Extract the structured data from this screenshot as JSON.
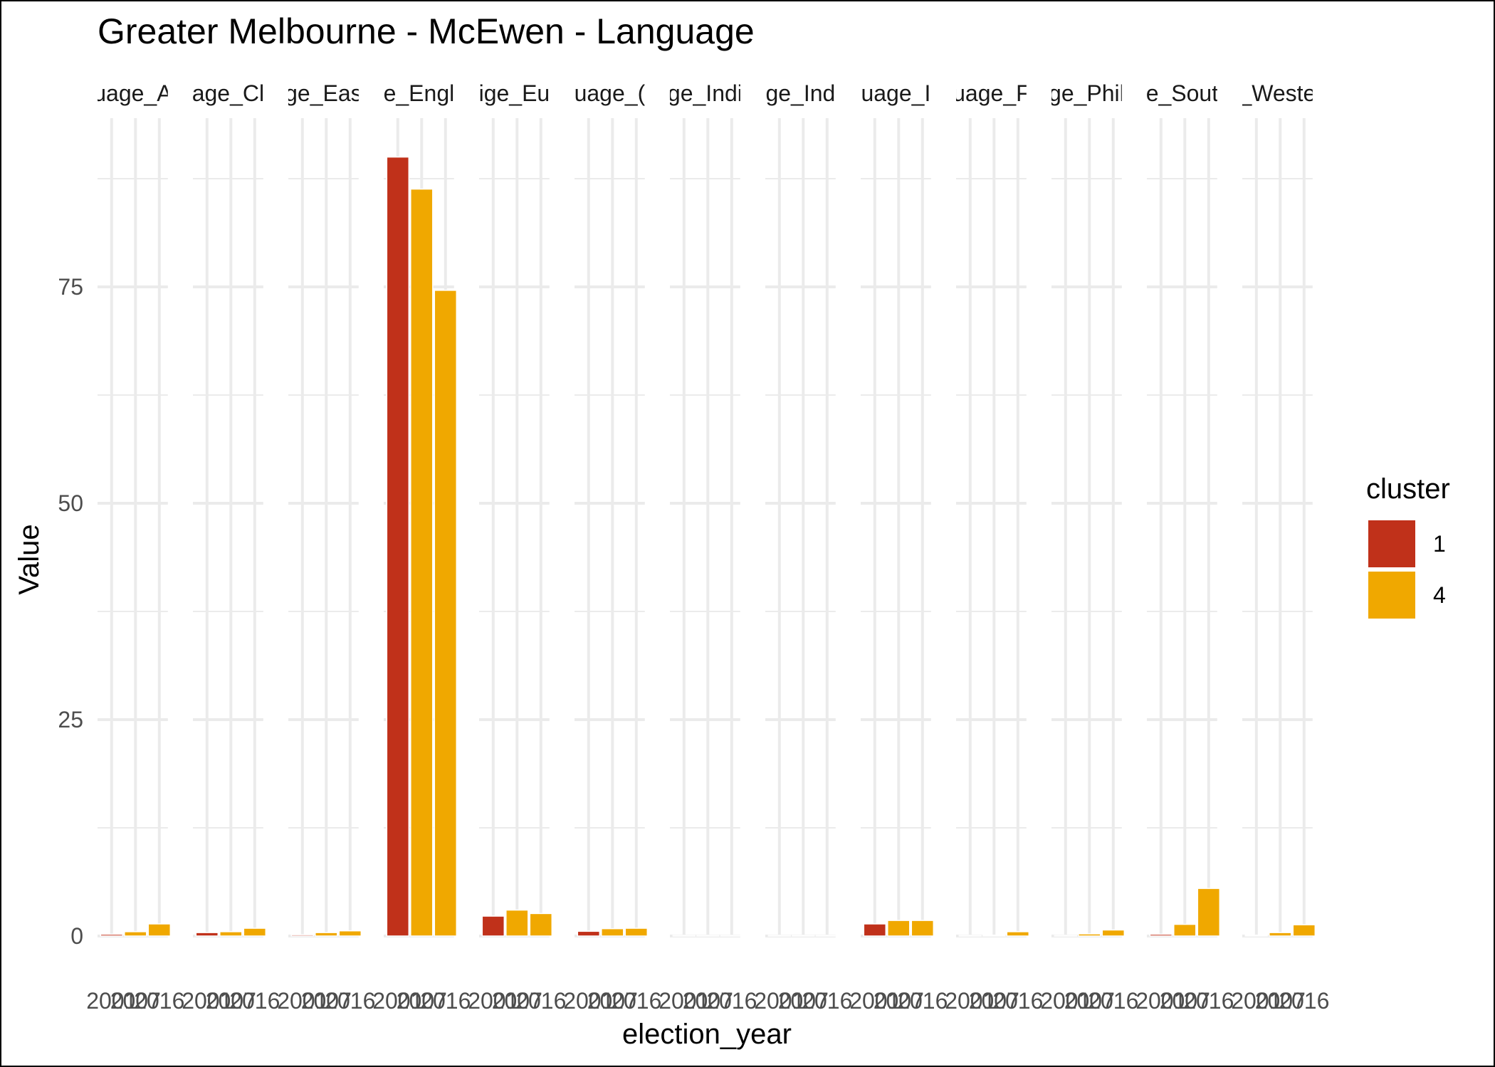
{
  "chart_data": {
    "type": "bar",
    "title": "Greater Melbourne - McEwen - Language",
    "xlabel": "election_year",
    "ylabel": "Value",
    "ylim": [
      0,
      95
    ],
    "yticks": [
      0,
      25,
      50,
      75
    ],
    "legend": {
      "title": "cluster",
      "position": "right",
      "entries": [
        {
          "label": "1",
          "color": "#C0311A"
        },
        {
          "label": "4",
          "color": "#F0A800"
        }
      ]
    },
    "facet_tick_labels": [
      "2001",
      "2007",
      "2016"
    ],
    "panels": [
      {
        "label": "Language_Arabic",
        "strip_text": "uage_A",
        "bars": [
          {
            "year": "2001",
            "cluster": "1",
            "value": 0.2
          },
          {
            "year": "2007",
            "cluster": "4",
            "value": 0.5
          },
          {
            "year": "2016",
            "cluster": "4",
            "value": 1.4
          }
        ]
      },
      {
        "label": "Language_Chinese",
        "strip_text": "age_Cl",
        "bars": [
          {
            "year": "2001",
            "cluster": "1",
            "value": 0.4
          },
          {
            "year": "2007",
            "cluster": "4",
            "value": 0.5
          },
          {
            "year": "2016",
            "cluster": "4",
            "value": 0.9
          }
        ]
      },
      {
        "label": "Language_Eastern",
        "strip_text": "ge_Eas",
        "bars": [
          {
            "year": "2001",
            "cluster": "1",
            "value": 0.15
          },
          {
            "year": "2007",
            "cluster": "4",
            "value": 0.4
          },
          {
            "year": "2016",
            "cluster": "4",
            "value": 0.6
          }
        ]
      },
      {
        "label": "Language_English",
        "strip_text": "e_Engl",
        "bars": [
          {
            "year": "2001",
            "cluster": "1",
            "value": 90.0
          },
          {
            "year": "2007",
            "cluster": "4",
            "value": 86.3
          },
          {
            "year": "2016",
            "cluster": "4",
            "value": 74.6
          }
        ]
      },
      {
        "label": "Language_European",
        "strip_text": "ige_Eu",
        "bars": [
          {
            "year": "2001",
            "cluster": "1",
            "value": 2.3
          },
          {
            "year": "2007",
            "cluster": "4",
            "value": 3.0
          },
          {
            "year": "2016",
            "cluster": "4",
            "value": 2.6
          }
        ]
      },
      {
        "label": "Language_Greek",
        "strip_text": "uage_(",
        "bars": [
          {
            "year": "2001",
            "cluster": "1",
            "value": 0.55
          },
          {
            "year": "2007",
            "cluster": "4",
            "value": 0.85
          },
          {
            "year": "2016",
            "cluster": "4",
            "value": 0.9
          }
        ]
      },
      {
        "label": "Language_Indian",
        "strip_text": "ge_Indi",
        "bars": [
          {
            "year": "2001",
            "cluster": "1",
            "value": 0.05
          },
          {
            "year": "2007",
            "cluster": "4",
            "value": 0.0
          },
          {
            "year": "2016",
            "cluster": "4",
            "value": 0.0
          }
        ]
      },
      {
        "label": "Language_Indigenous",
        "strip_text": "ge_Ind",
        "bars": [
          {
            "year": "2001",
            "cluster": "1",
            "value": 0.05
          },
          {
            "year": "2007",
            "cluster": "4",
            "value": 0.07
          },
          {
            "year": "2016",
            "cluster": "4",
            "value": 0.07
          }
        ]
      },
      {
        "label": "Language_Italian",
        "strip_text": "uage_I",
        "bars": [
          {
            "year": "2001",
            "cluster": "1",
            "value": 1.4
          },
          {
            "year": "2007",
            "cluster": "4",
            "value": 1.8
          },
          {
            "year": "2016",
            "cluster": "4",
            "value": 1.8
          }
        ]
      },
      {
        "label": "Language_Persian",
        "strip_text": "uage_F",
        "bars": [
          {
            "year": "2001",
            "cluster": "1",
            "value": 0.05
          },
          {
            "year": "2007",
            "cluster": "4",
            "value": 0.1
          },
          {
            "year": "2016",
            "cluster": "4",
            "value": 0.5
          }
        ]
      },
      {
        "label": "Language_Philippine",
        "strip_text": "ge_Phil",
        "bars": [
          {
            "year": "2001",
            "cluster": "1",
            "value": 0.05
          },
          {
            "year": "2007",
            "cluster": "4",
            "value": 0.25
          },
          {
            "year": "2016",
            "cluster": "4",
            "value": 0.7
          }
        ]
      },
      {
        "label": "Language_SouthAsian",
        "strip_text": "e_Sout",
        "bars": [
          {
            "year": "2001",
            "cluster": "1",
            "value": 0.2
          },
          {
            "year": "2007",
            "cluster": "4",
            "value": 1.35
          },
          {
            "year": "2016",
            "cluster": "4",
            "value": 5.5
          }
        ]
      },
      {
        "label": "Language_Western",
        "strip_text": "_Weste",
        "bars": [
          {
            "year": "2001",
            "cluster": "1",
            "value": 0.1
          },
          {
            "year": "2007",
            "cluster": "4",
            "value": 0.4
          },
          {
            "year": "2016",
            "cluster": "4",
            "value": 1.3
          }
        ]
      }
    ]
  }
}
